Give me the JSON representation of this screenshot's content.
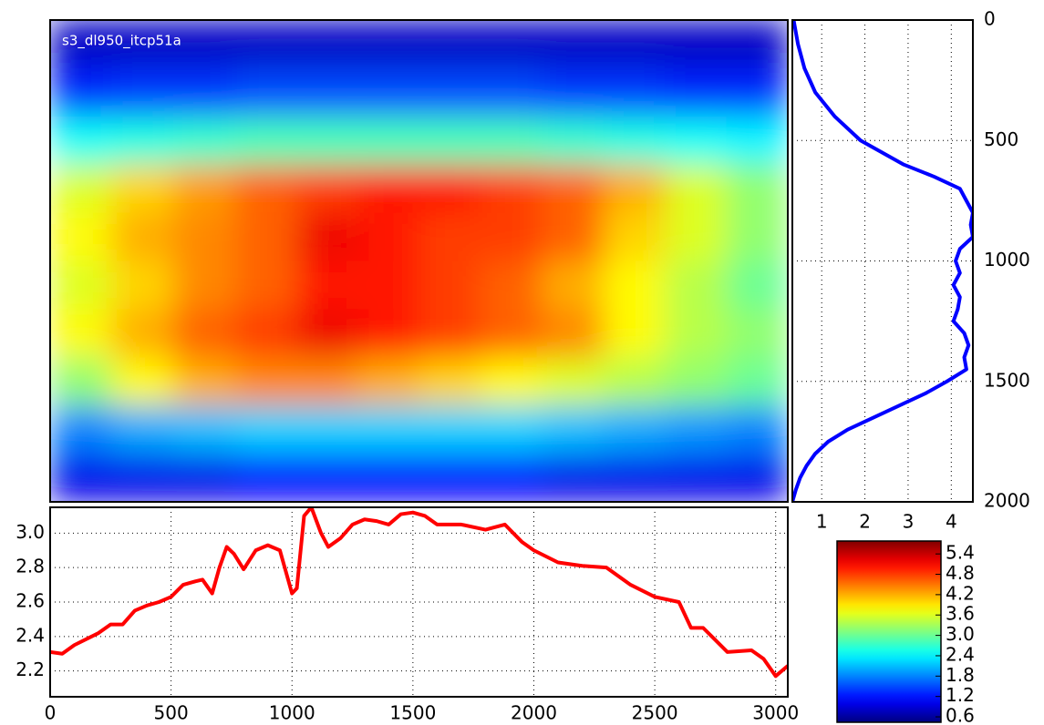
{
  "chart_data": [
    {
      "type": "heatmap",
      "annotation": "s3_dl950_itcp51a",
      "xlim": [
        0,
        3050
      ],
      "ylim": [
        0,
        2000
      ],
      "z": [
        [
          0.8,
          0.8,
          0.8,
          0.8,
          0.8,
          0.8,
          0.8,
          0.8,
          0.8,
          0.8,
          0.8,
          0.8
        ],
        [
          1.3,
          1.4,
          1.4,
          1.5,
          1.5,
          1.5,
          1.5,
          1.5,
          1.4,
          1.4,
          1.3,
          1.3
        ],
        [
          2.5,
          2.6,
          2.7,
          2.8,
          2.8,
          2.8,
          2.8,
          2.8,
          2.7,
          2.6,
          2.5,
          2.4
        ],
        [
          3.6,
          4.0,
          4.3,
          4.6,
          4.8,
          5.0,
          5.0,
          4.8,
          4.6,
          4.2,
          3.6,
          3.2
        ],
        [
          3.8,
          4.2,
          4.4,
          4.6,
          5.2,
          5.0,
          4.8,
          4.8,
          4.6,
          4.0,
          3.6,
          3.2
        ],
        [
          3.6,
          4.0,
          4.4,
          4.6,
          5.0,
          5.0,
          4.8,
          4.6,
          4.2,
          3.8,
          3.4,
          3.0
        ],
        [
          3.8,
          4.2,
          4.6,
          4.8,
          5.2,
          5.0,
          4.8,
          4.6,
          4.4,
          3.8,
          3.4,
          3.2
        ],
        [
          3.2,
          3.8,
          4.2,
          4.4,
          4.4,
          4.2,
          4.0,
          3.8,
          3.6,
          3.4,
          3.2,
          3.0
        ],
        [
          1.8,
          2.0,
          2.1,
          2.2,
          2.2,
          2.2,
          2.2,
          2.2,
          2.1,
          2.0,
          1.9,
          1.8
        ],
        [
          1.0,
          1.0,
          1.0,
          1.1,
          1.1,
          1.1,
          1.1,
          1.1,
          1.0,
          1.0,
          1.0,
          1.0
        ]
      ],
      "colorbar": {
        "ylim": [
          0.44,
          5.78
        ],
        "yticks": [
          0.6,
          1.2,
          1.8,
          2.4,
          {
            "value": 3,
            "label": "3.0"
          },
          3.6,
          4.2,
          4.8,
          5.4
        ]
      }
    },
    {
      "type": "line",
      "x": [
        0,
        50,
        100,
        200,
        250,
        300,
        350,
        400,
        450,
        500,
        550,
        600,
        630,
        670,
        700,
        730,
        760,
        800,
        850,
        900,
        950,
        1000,
        1020,
        1050,
        1080,
        1120,
        1150,
        1200,
        1250,
        1300,
        1350,
        1400,
        1450,
        1500,
        1550,
        1600,
        1700,
        1800,
        1880,
        1950,
        2000,
        2100,
        2200,
        2300,
        2400,
        2500,
        2600,
        2650,
        2700,
        2750,
        2800,
        2900,
        2950,
        3000,
        3050
      ],
      "values": [
        2.31,
        2.3,
        2.35,
        2.42,
        2.47,
        2.47,
        2.55,
        2.58,
        2.6,
        2.63,
        2.7,
        2.72,
        2.73,
        2.65,
        2.8,
        2.92,
        2.88,
        2.79,
        2.9,
        2.93,
        2.9,
        2.65,
        2.68,
        3.1,
        3.15,
        3.0,
        2.92,
        2.97,
        3.05,
        3.08,
        3.07,
        3.05,
        3.11,
        3.12,
        3.1,
        3.05,
        3.05,
        3.02,
        3.05,
        2.95,
        2.9,
        2.83,
        2.81,
        2.8,
        2.7,
        2.63,
        2.6,
        2.45,
        2.45,
        2.38,
        2.31,
        2.32,
        2.27,
        2.17,
        2.23
      ],
      "color": "#ff0000",
      "xlim": [
        0,
        3050
      ],
      "xticks": [
        0,
        500,
        1000,
        1500,
        2000,
        2500,
        3000
      ],
      "ylim": [
        2.05,
        3.15
      ],
      "yticks": [
        2.2,
        2.4,
        2.6,
        2.8,
        {
          "value": 3,
          "label": "3.0"
        }
      ],
      "grid": true
    },
    {
      "type": "line",
      "y": [
        0,
        100,
        200,
        300,
        400,
        500,
        600,
        650,
        700,
        750,
        800,
        850,
        900,
        950,
        1000,
        1050,
        1100,
        1150,
        1200,
        1250,
        1300,
        1350,
        1400,
        1450,
        1500,
        1550,
        1600,
        1650,
        1700,
        1750,
        1800,
        1850,
        1900,
        1950,
        2000
      ],
      "values": [
        0.35,
        0.45,
        0.6,
        0.85,
        1.3,
        1.9,
        2.9,
        3.6,
        4.2,
        4.35,
        4.5,
        4.45,
        4.5,
        4.2,
        4.1,
        4.2,
        4.05,
        4.2,
        4.15,
        4.05,
        4.3,
        4.4,
        4.3,
        4.35,
        3.9,
        3.4,
        2.8,
        2.2,
        1.6,
        1.15,
        0.85,
        0.65,
        0.5,
        0.4,
        0.32
      ],
      "color": "#0000ff",
      "xlim": [
        0.32,
        4.5
      ],
      "xticks": [
        1,
        2,
        3,
        4
      ],
      "ylim": [
        0,
        2000
      ],
      "yticks": [
        0,
        500,
        1000,
        1500,
        2000
      ],
      "grid": true
    }
  ]
}
